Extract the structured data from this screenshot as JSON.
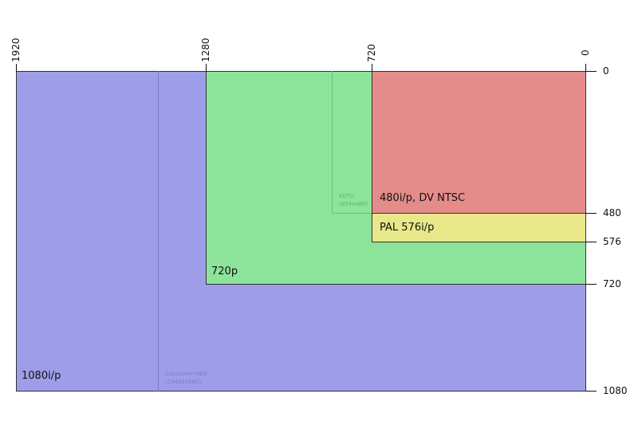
{
  "colors": {
    "r1080": "#9e9ee8",
    "r720": "#8ce49a",
    "r480": "#e48c8a",
    "r576": "#e8e88a"
  },
  "x_ticks": [
    "1920",
    "1280",
    "720",
    "0"
  ],
  "y_ticks": [
    "0",
    "480",
    "576",
    "720",
    "1080"
  ],
  "regions": {
    "r1080": "1080i/p",
    "hdv": "Consumer HDV",
    "hdv_size": "(1440x1080)",
    "r720": "720p",
    "edtv": "EDTV",
    "edtv_size": "(854x480)",
    "r480": "480i/p, DV NTSC",
    "r576": "PAL 576i/p"
  }
}
